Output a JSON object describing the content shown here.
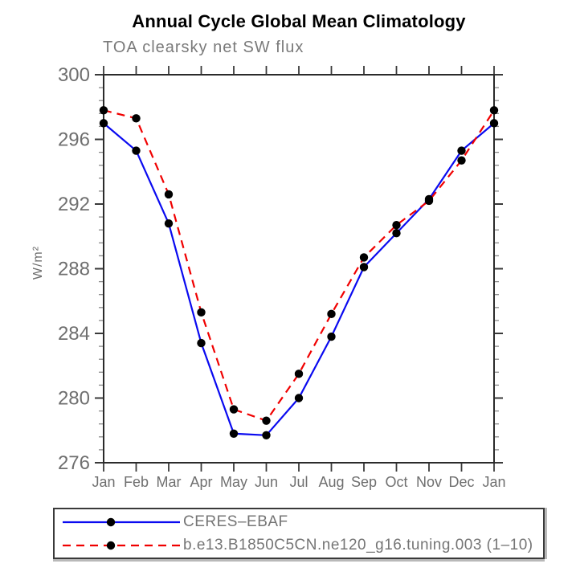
{
  "chart": {
    "title": "Annual Cycle Global Mean Climatology",
    "subtitle": "TOA clearsky net SW flux",
    "ylabel": "W/m²"
  },
  "legend": {
    "items": [
      {
        "label": "CERES–EBAF"
      },
      {
        "label": "b.e13.B1850C5CN.ne120_g16.tuning.003 (1–10)"
      }
    ]
  },
  "chart_data": {
    "type": "line",
    "title": "Annual Cycle Global Mean Climatology",
    "subtitle": "TOA clearsky net SW flux",
    "xlabel": "",
    "ylabel": "W/m²",
    "categories": [
      "Jan",
      "Feb",
      "Mar",
      "Apr",
      "May",
      "Jun",
      "Jul",
      "Aug",
      "Sep",
      "Oct",
      "Nov",
      "Dec",
      "Jan"
    ],
    "series": [
      {
        "name": "CERES–EBAF",
        "color": "#0a0af0",
        "style": "solid",
        "marker": "black-dot",
        "values": [
          297.0,
          295.3,
          290.8,
          283.4,
          277.8,
          277.7,
          280.0,
          283.8,
          288.1,
          290.2,
          292.3,
          295.3,
          297.0
        ]
      },
      {
        "name": "b.e13.B1850C5CN.ne120_g16.tuning.003 (1–10)",
        "color": "#f00000",
        "style": "dashed",
        "marker": "black-dot",
        "values": [
          297.8,
          297.3,
          292.6,
          285.3,
          279.3,
          278.6,
          281.5,
          285.2,
          288.7,
          290.7,
          292.2,
          294.7,
          297.8
        ]
      }
    ],
    "ylim": [
      276,
      300
    ],
    "yticks": [
      300,
      296,
      292,
      288,
      284,
      280,
      276
    ],
    "minor_tick_step": 0.8,
    "grid": false,
    "legend_position": "bottom",
    "marker_color": "#000000",
    "axis_text_color": "#6f6f6f",
    "frame_color": "#2b2b2b"
  }
}
